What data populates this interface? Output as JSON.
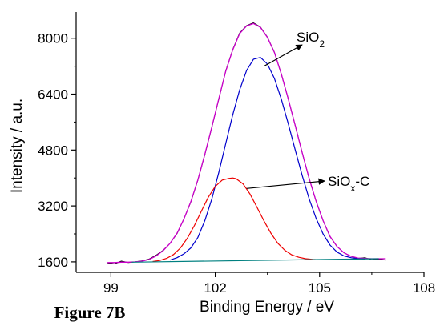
{
  "chart_data": {
    "type": "line",
    "title": "",
    "xlabel": "Binding Energy / eV",
    "ylabel": "Intensity / a.u.",
    "xlim": [
      98,
      108
    ],
    "ylim": [
      1300,
      8750
    ],
    "x_ticks": [
      99,
      102,
      105,
      108
    ],
    "y_ticks": [
      1600,
      3200,
      4800,
      6400,
      8000
    ],
    "x_tick_labels": [
      "99",
      "102",
      "105",
      "108"
    ],
    "y_tick_labels": [
      "1600",
      "3200",
      "4800",
      "6400",
      "8000"
    ],
    "grid": false,
    "legend": "none",
    "figure_label": "Figure 7B",
    "annotations": [
      {
        "base": "SiO",
        "sub": "2",
        "suffix": "",
        "points_to_x": 103.4,
        "points_to_y": 7200
      },
      {
        "base": "SiO",
        "sub": "x",
        "suffix": "-C",
        "points_to_x": 102.9,
        "points_to_y": 3700
      }
    ],
    "colors": {
      "raw": "#000000",
      "envelope": "#cc00cc",
      "sio2": "#0000cc",
      "siox_c": "#ee0000",
      "background": "#008080"
    },
    "series": [
      {
        "key": "raw",
        "x": [
          98.9,
          99.1,
          99.3,
          99.5,
          99.7,
          99.9,
          100.1,
          100.3,
          100.5,
          100.7,
          100.9,
          101.1,
          101.3,
          101.5,
          101.7,
          101.9,
          102.1,
          102.3,
          102.5,
          102.7,
          102.9,
          103.1,
          103.3,
          103.5,
          103.7,
          103.9,
          104.1,
          104.3,
          104.5,
          104.7,
          104.9,
          105.1,
          105.3,
          105.5,
          105.7,
          105.9,
          106.1,
          106.3,
          106.5,
          106.7,
          106.9
        ],
        "y": [
          1570,
          1540,
          1620,
          1580,
          1600,
          1630,
          1680,
          1790,
          1930,
          2130,
          2410,
          2830,
          3320,
          3940,
          4670,
          5450,
          6250,
          7060,
          7670,
          8150,
          8360,
          8440,
          8320,
          8030,
          7600,
          6970,
          6260,
          5500,
          4720,
          3980,
          3330,
          2780,
          2320,
          2040,
          1860,
          1760,
          1700,
          1720,
          1660,
          1680,
          1650
        ]
      },
      {
        "key": "envelope",
        "x": [
          98.9,
          99.1,
          99.3,
          99.5,
          99.7,
          99.9,
          100.1,
          100.3,
          100.5,
          100.7,
          100.9,
          101.1,
          101.3,
          101.5,
          101.7,
          101.9,
          102.1,
          102.3,
          102.5,
          102.7,
          102.9,
          103.1,
          103.3,
          103.5,
          103.7,
          103.9,
          104.1,
          104.3,
          104.5,
          104.7,
          104.9,
          105.1,
          105.3,
          105.5,
          105.7,
          105.9,
          106.1,
          106.3,
          106.5,
          106.7,
          106.9
        ],
        "y": [
          1580,
          1580,
          1590,
          1590,
          1600,
          1620,
          1670,
          1770,
          1920,
          2130,
          2420,
          2830,
          3330,
          3950,
          4680,
          5460,
          6260,
          7050,
          7660,
          8130,
          8350,
          8420,
          8310,
          8020,
          7590,
          6970,
          6260,
          5500,
          4720,
          3980,
          3330,
          2780,
          2330,
          2040,
          1860,
          1760,
          1710,
          1700,
          1690,
          1690,
          1690
        ]
      },
      {
        "key": "sio2",
        "x": [
          100.7,
          100.9,
          101.1,
          101.3,
          101.5,
          101.7,
          101.9,
          102.1,
          102.3,
          102.5,
          102.7,
          102.9,
          103.1,
          103.3,
          103.5,
          103.7,
          103.9,
          104.1,
          104.3,
          104.5,
          104.7,
          104.9,
          105.1,
          105.3,
          105.5,
          105.7,
          105.9,
          106.1,
          106.3
        ],
        "y": [
          1650,
          1720,
          1830,
          2000,
          2300,
          2780,
          3400,
          4150,
          4980,
          5800,
          6520,
          7080,
          7400,
          7450,
          7260,
          6850,
          6250,
          5550,
          4800,
          4070,
          3400,
          2840,
          2400,
          2080,
          1880,
          1770,
          1720,
          1690,
          1680
        ]
      },
      {
        "key": "siox_c",
        "x": [
          100.2,
          100.4,
          100.6,
          100.8,
          101.0,
          101.2,
          101.4,
          101.6,
          101.8,
          102.0,
          102.2,
          102.4,
          102.5,
          102.6,
          102.8,
          103.0,
          103.2,
          103.4,
          103.6,
          103.8,
          104.0,
          104.2,
          104.4,
          104.6,
          104.8,
          105.0
        ],
        "y": [
          1610,
          1640,
          1700,
          1810,
          2000,
          2280,
          2640,
          3050,
          3450,
          3760,
          3940,
          3990,
          4000,
          3980,
          3830,
          3540,
          3160,
          2770,
          2420,
          2130,
          1930,
          1800,
          1730,
          1690,
          1670,
          1660
        ]
      },
      {
        "key": "background",
        "x": [
          99.6,
          106.7
        ],
        "y": [
          1590,
          1690
        ]
      }
    ]
  }
}
